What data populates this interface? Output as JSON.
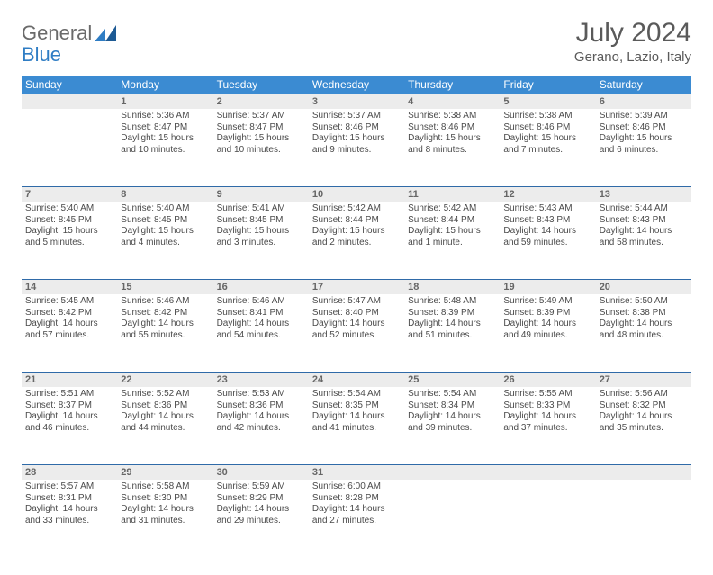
{
  "brand": {
    "left": "General",
    "right": "Blue"
  },
  "title": "July 2024",
  "location": "Gerano, Lazio, Italy",
  "colors": {
    "header_bg": "#3b8bd2",
    "rule": "#2f6aa8",
    "daynum_bg": "#ececec",
    "text": "#4a4a4a",
    "title_color": "#5a5a5a"
  },
  "dayNames": [
    "Sunday",
    "Monday",
    "Tuesday",
    "Wednesday",
    "Thursday",
    "Friday",
    "Saturday"
  ],
  "weeks": [
    {
      "nums": [
        "",
        "1",
        "2",
        "3",
        "4",
        "5",
        "6"
      ],
      "cells": [
        null,
        {
          "sr": "Sunrise: 5:36 AM",
          "ss": "Sunset: 8:47 PM",
          "d1": "Daylight: 15 hours",
          "d2": "and 10 minutes."
        },
        {
          "sr": "Sunrise: 5:37 AM",
          "ss": "Sunset: 8:47 PM",
          "d1": "Daylight: 15 hours",
          "d2": "and 10 minutes."
        },
        {
          "sr": "Sunrise: 5:37 AM",
          "ss": "Sunset: 8:46 PM",
          "d1": "Daylight: 15 hours",
          "d2": "and 9 minutes."
        },
        {
          "sr": "Sunrise: 5:38 AM",
          "ss": "Sunset: 8:46 PM",
          "d1": "Daylight: 15 hours",
          "d2": "and 8 minutes."
        },
        {
          "sr": "Sunrise: 5:38 AM",
          "ss": "Sunset: 8:46 PM",
          "d1": "Daylight: 15 hours",
          "d2": "and 7 minutes."
        },
        {
          "sr": "Sunrise: 5:39 AM",
          "ss": "Sunset: 8:46 PM",
          "d1": "Daylight: 15 hours",
          "d2": "and 6 minutes."
        }
      ]
    },
    {
      "nums": [
        "7",
        "8",
        "9",
        "10",
        "11",
        "12",
        "13"
      ],
      "cells": [
        {
          "sr": "Sunrise: 5:40 AM",
          "ss": "Sunset: 8:45 PM",
          "d1": "Daylight: 15 hours",
          "d2": "and 5 minutes."
        },
        {
          "sr": "Sunrise: 5:40 AM",
          "ss": "Sunset: 8:45 PM",
          "d1": "Daylight: 15 hours",
          "d2": "and 4 minutes."
        },
        {
          "sr": "Sunrise: 5:41 AM",
          "ss": "Sunset: 8:45 PM",
          "d1": "Daylight: 15 hours",
          "d2": "and 3 minutes."
        },
        {
          "sr": "Sunrise: 5:42 AM",
          "ss": "Sunset: 8:44 PM",
          "d1": "Daylight: 15 hours",
          "d2": "and 2 minutes."
        },
        {
          "sr": "Sunrise: 5:42 AM",
          "ss": "Sunset: 8:44 PM",
          "d1": "Daylight: 15 hours",
          "d2": "and 1 minute."
        },
        {
          "sr": "Sunrise: 5:43 AM",
          "ss": "Sunset: 8:43 PM",
          "d1": "Daylight: 14 hours",
          "d2": "and 59 minutes."
        },
        {
          "sr": "Sunrise: 5:44 AM",
          "ss": "Sunset: 8:43 PM",
          "d1": "Daylight: 14 hours",
          "d2": "and 58 minutes."
        }
      ]
    },
    {
      "nums": [
        "14",
        "15",
        "16",
        "17",
        "18",
        "19",
        "20"
      ],
      "cells": [
        {
          "sr": "Sunrise: 5:45 AM",
          "ss": "Sunset: 8:42 PM",
          "d1": "Daylight: 14 hours",
          "d2": "and 57 minutes."
        },
        {
          "sr": "Sunrise: 5:46 AM",
          "ss": "Sunset: 8:42 PM",
          "d1": "Daylight: 14 hours",
          "d2": "and 55 minutes."
        },
        {
          "sr": "Sunrise: 5:46 AM",
          "ss": "Sunset: 8:41 PM",
          "d1": "Daylight: 14 hours",
          "d2": "and 54 minutes."
        },
        {
          "sr": "Sunrise: 5:47 AM",
          "ss": "Sunset: 8:40 PM",
          "d1": "Daylight: 14 hours",
          "d2": "and 52 minutes."
        },
        {
          "sr": "Sunrise: 5:48 AM",
          "ss": "Sunset: 8:39 PM",
          "d1": "Daylight: 14 hours",
          "d2": "and 51 minutes."
        },
        {
          "sr": "Sunrise: 5:49 AM",
          "ss": "Sunset: 8:39 PM",
          "d1": "Daylight: 14 hours",
          "d2": "and 49 minutes."
        },
        {
          "sr": "Sunrise: 5:50 AM",
          "ss": "Sunset: 8:38 PM",
          "d1": "Daylight: 14 hours",
          "d2": "and 48 minutes."
        }
      ]
    },
    {
      "nums": [
        "21",
        "22",
        "23",
        "24",
        "25",
        "26",
        "27"
      ],
      "cells": [
        {
          "sr": "Sunrise: 5:51 AM",
          "ss": "Sunset: 8:37 PM",
          "d1": "Daylight: 14 hours",
          "d2": "and 46 minutes."
        },
        {
          "sr": "Sunrise: 5:52 AM",
          "ss": "Sunset: 8:36 PM",
          "d1": "Daylight: 14 hours",
          "d2": "and 44 minutes."
        },
        {
          "sr": "Sunrise: 5:53 AM",
          "ss": "Sunset: 8:36 PM",
          "d1": "Daylight: 14 hours",
          "d2": "and 42 minutes."
        },
        {
          "sr": "Sunrise: 5:54 AM",
          "ss": "Sunset: 8:35 PM",
          "d1": "Daylight: 14 hours",
          "d2": "and 41 minutes."
        },
        {
          "sr": "Sunrise: 5:54 AM",
          "ss": "Sunset: 8:34 PM",
          "d1": "Daylight: 14 hours",
          "d2": "and 39 minutes."
        },
        {
          "sr": "Sunrise: 5:55 AM",
          "ss": "Sunset: 8:33 PM",
          "d1": "Daylight: 14 hours",
          "d2": "and 37 minutes."
        },
        {
          "sr": "Sunrise: 5:56 AM",
          "ss": "Sunset: 8:32 PM",
          "d1": "Daylight: 14 hours",
          "d2": "and 35 minutes."
        }
      ]
    },
    {
      "nums": [
        "28",
        "29",
        "30",
        "31",
        "",
        "",
        ""
      ],
      "cells": [
        {
          "sr": "Sunrise: 5:57 AM",
          "ss": "Sunset: 8:31 PM",
          "d1": "Daylight: 14 hours",
          "d2": "and 33 minutes."
        },
        {
          "sr": "Sunrise: 5:58 AM",
          "ss": "Sunset: 8:30 PM",
          "d1": "Daylight: 14 hours",
          "d2": "and 31 minutes."
        },
        {
          "sr": "Sunrise: 5:59 AM",
          "ss": "Sunset: 8:29 PM",
          "d1": "Daylight: 14 hours",
          "d2": "and 29 minutes."
        },
        {
          "sr": "Sunrise: 6:00 AM",
          "ss": "Sunset: 8:28 PM",
          "d1": "Daylight: 14 hours",
          "d2": "and 27 minutes."
        },
        null,
        null,
        null
      ]
    }
  ]
}
